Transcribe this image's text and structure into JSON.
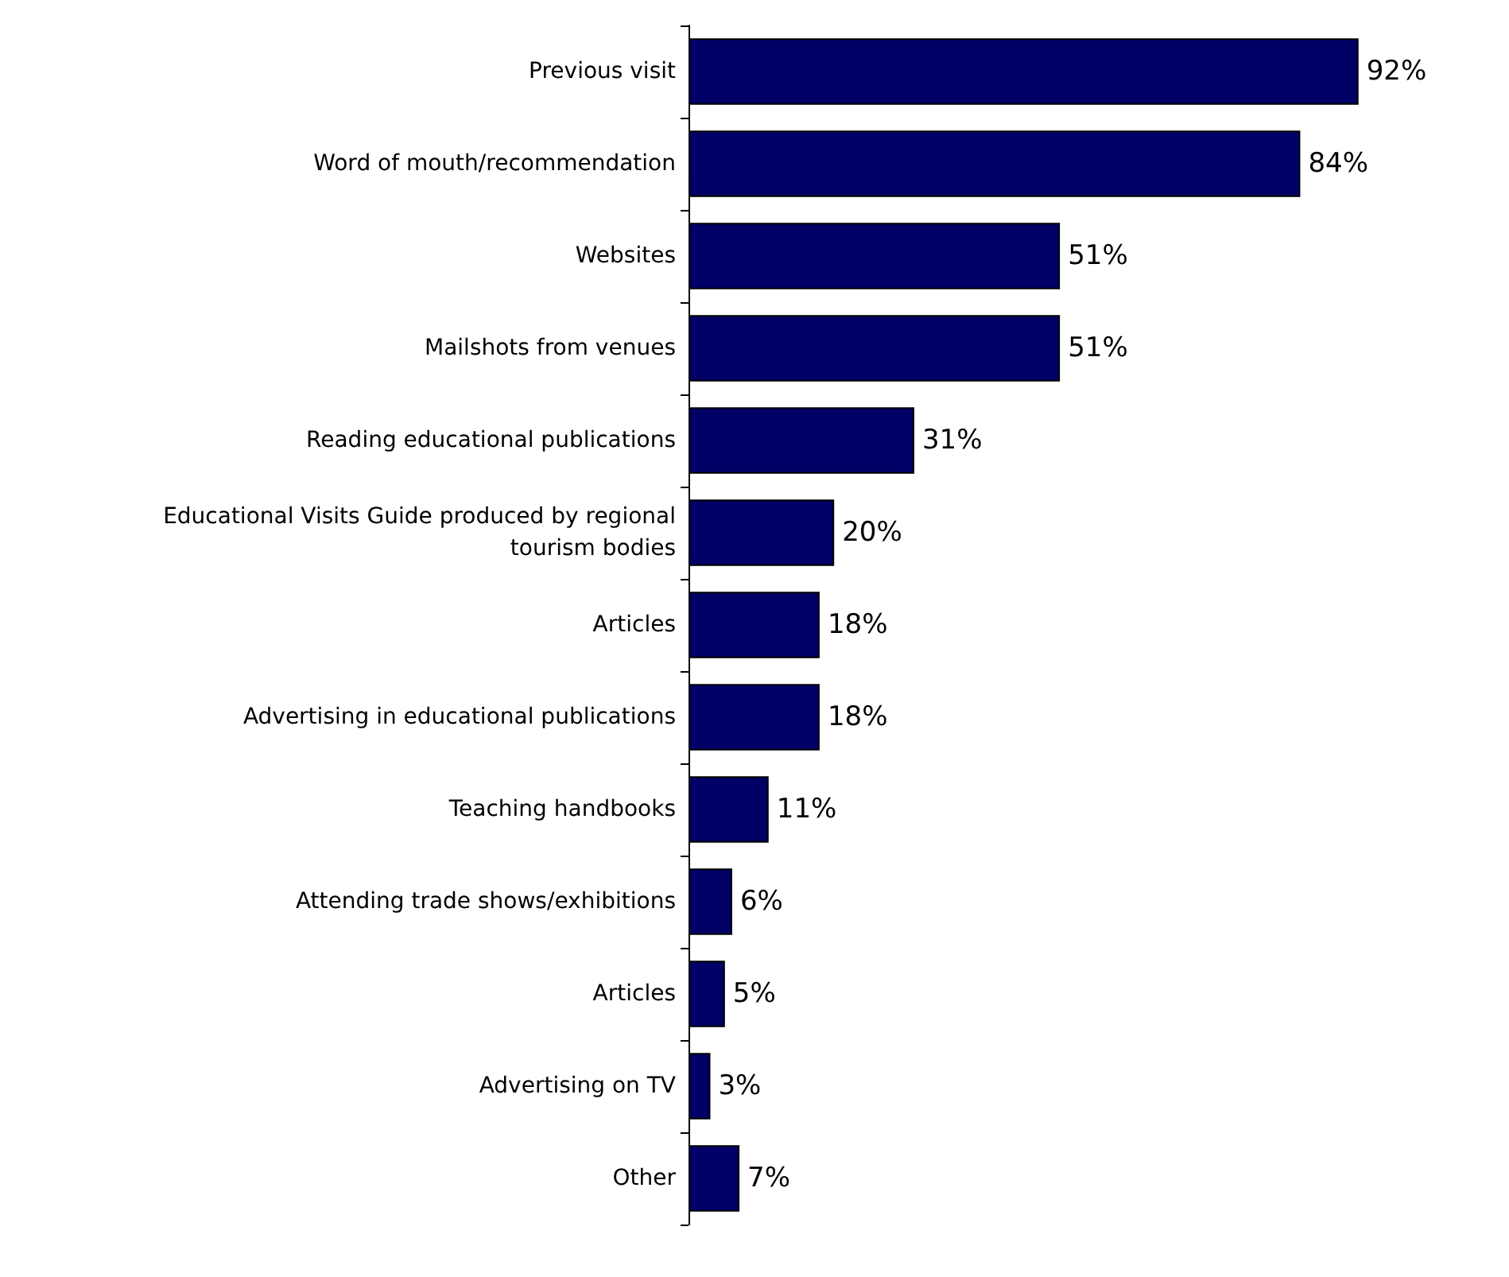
{
  "chart_data": {
    "type": "bar",
    "orientation": "horizontal",
    "categories": [
      "Previous visit",
      "Word of mouth/recommendation",
      "Websites",
      "Mailshots from venues",
      "Reading educational publications",
      "Educational Visits Guide produced by regional\ntourism bodies",
      "Articles",
      "Advertising in educational publications",
      "Teaching handbooks",
      "Attending trade shows/exhibitions",
      "Articles",
      "Advertising on TV",
      "Other"
    ],
    "values": [
      92,
      84,
      51,
      51,
      31,
      20,
      18,
      18,
      11,
      6,
      5,
      3,
      7
    ],
    "value_labels": [
      "92%",
      "84%",
      "51%",
      "51%",
      "31%",
      "20%",
      "18%",
      "18%",
      "11%",
      "6%",
      "5%",
      "3%",
      "7%"
    ],
    "color": "#000066"
  }
}
